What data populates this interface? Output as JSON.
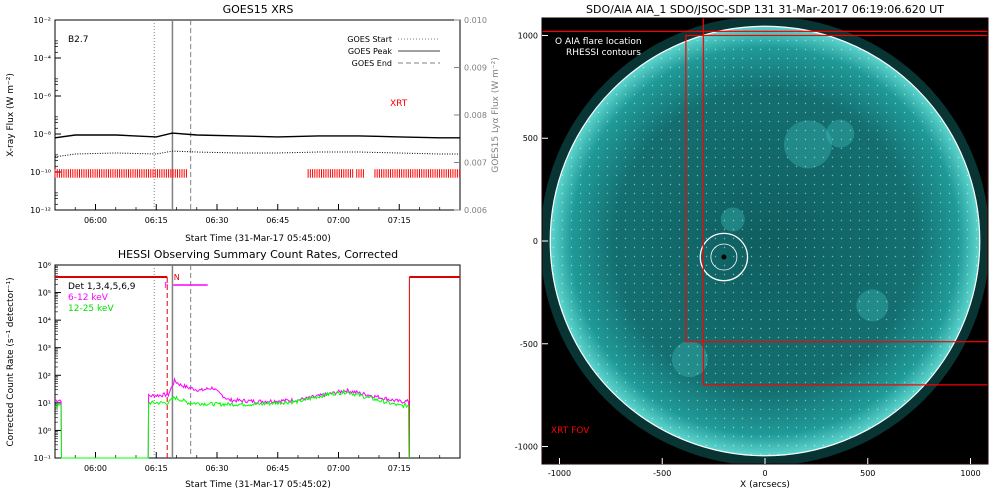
{
  "colors": {
    "flux_high": "#000000",
    "flux_low": "#000000",
    "goes_marker": "#808080",
    "xrt": "#ff0000",
    "band_6_12": "#ff00ff",
    "band_12_25": "#00ff00",
    "sun": "#1a8f8f",
    "limb": "#ffffff",
    "fov": "#ff0000"
  },
  "chart_data": [
    {
      "type": "line",
      "title": "GOES15 XRS",
      "xlabel": "Start Time (31-Mar-17 05:45:00)",
      "ylabel": "X-ray Flux (W m⁻²)",
      "ylabel_right": "GOES15 Lyα Flux (W m⁻²)",
      "x_unit": "minutes after 05:45:00",
      "xlim": [
        5.0,
        105.0
      ],
      "x_ticks": [
        15,
        30,
        45,
        60,
        75,
        90
      ],
      "x_tick_labels": [
        "06:00",
        "06:15",
        "06:30",
        "06:45",
        "07:00",
        "07:15"
      ],
      "ylim_exp": [
        -12,
        -2
      ],
      "y_ticks_exp": [
        -12,
        -10,
        -8,
        -6,
        -4,
        -2
      ],
      "y_tick_labels": [
        "10⁻¹²",
        "10⁻¹⁰",
        "10⁻⁸",
        "10⁻⁶",
        "10⁻⁴",
        "10⁻²"
      ],
      "y2lim": [
        0.006,
        0.01
      ],
      "y2_tick_labels": [
        "0.006",
        "0.007",
        "0.008",
        "0.009",
        "0.010"
      ],
      "class_label": "B2.7",
      "xrt_label": "XRT",
      "legend": [
        "GOES Start",
        "GOES Peak",
        "GOES End"
      ],
      "markers": {
        "start": 29.5,
        "peak": 34.0,
        "end": 38.5
      },
      "series": [
        {
          "name": "",
          "points": [
            [
              5,
              -8.2
            ],
            [
              10,
              -8.05
            ],
            [
              20,
              -8.05
            ],
            [
              30,
              -8.15
            ],
            [
              34,
              -7.95
            ],
            [
              40,
              -8.05
            ],
            [
              50,
              -8.1
            ],
            [
              60,
              -8.15
            ],
            [
              70,
              -8.1
            ],
            [
              80,
              -8.1
            ],
            [
              90,
              -8.15
            ],
            [
              100,
              -8.2
            ],
            [
              105,
              -8.2
            ]
          ]
        },
        {
          "name": "",
          "points": [
            [
              5,
              -9.2
            ],
            [
              10,
              -9.05
            ],
            [
              20,
              -9.0
            ],
            [
              30,
              -9.05
            ],
            [
              34,
              -8.9
            ],
            [
              40,
              -8.95
            ],
            [
              50,
              -9.0
            ],
            [
              60,
              -9.0
            ],
            [
              70,
              -8.95
            ],
            [
              80,
              -8.95
            ],
            [
              90,
              -9.0
            ],
            [
              100,
              -9.05
            ],
            [
              105,
              -9.05
            ]
          ]
        }
      ],
      "xrt_coverage": [
        [
          5,
          37.5
        ],
        [
          67.5,
          78.5
        ],
        [
          79.5,
          81.5
        ],
        [
          84,
          105
        ]
      ]
    },
    {
      "type": "line",
      "title": "HESSI Observing Summary Count Rates, Corrected",
      "xlabel": "Start Time (31-Mar-17 05:45:02)",
      "ylabel": "Corrected Count Rate (s⁻¹ detector⁻¹)",
      "x_unit": "minutes after 05:45:02",
      "xlim": [
        5.0,
        105.0
      ],
      "x_ticks": [
        15,
        30,
        45,
        60,
        75,
        90
      ],
      "x_tick_labels": [
        "06:00",
        "06:15",
        "06:30",
        "06:45",
        "07:00",
        "07:15"
      ],
      "ylim_exp": [
        -1,
        6
      ],
      "y_ticks_exp": [
        -1,
        0,
        1,
        2,
        3,
        4,
        5,
        6
      ],
      "y_tick_labels": [
        "10⁻¹",
        "10⁰",
        "10¹",
        "10²",
        "10³",
        "10⁴",
        "10⁵",
        "10⁶"
      ],
      "det_label": "Det 1,3,4,5,6,9",
      "flag_labels": [
        "F",
        "N"
      ],
      "markers": {
        "start": 29.5,
        "peak": 34.0,
        "end": 38.5
      },
      "series": [
        {
          "name": "6-12 keV",
          "points": [
            [
              5,
              1.1
            ],
            [
              6.5,
              1.1
            ],
            [
              6.6,
              -1
            ],
            [
              28,
              -1
            ],
            [
              28.1,
              1.25
            ],
            [
              33,
              1.3
            ],
            [
              34.5,
              1.8
            ],
            [
              36,
              1.65
            ],
            [
              38,
              1.55
            ],
            [
              41,
              1.45
            ],
            [
              44,
              1.55
            ],
            [
              45,
              1.4
            ],
            [
              48,
              1.1
            ],
            [
              55,
              1.05
            ],
            [
              65,
              1.1
            ],
            [
              72,
              1.3
            ],
            [
              77,
              1.45
            ],
            [
              82,
              1.3
            ],
            [
              90,
              1.05
            ],
            [
              92.3,
              1.05
            ],
            [
              92.4,
              -1
            ]
          ]
        },
        {
          "name": "12-25 keV",
          "points": [
            [
              5,
              0.9
            ],
            [
              6.5,
              0.9
            ],
            [
              6.6,
              -1
            ],
            [
              28,
              -1
            ],
            [
              28.1,
              1.0
            ],
            [
              33,
              1.0
            ],
            [
              34.5,
              1.2
            ],
            [
              38,
              1.0
            ],
            [
              45,
              0.95
            ],
            [
              55,
              0.95
            ],
            [
              65,
              1.05
            ],
            [
              72,
              1.3
            ],
            [
              77,
              1.4
            ],
            [
              82,
              1.2
            ],
            [
              90,
              0.9
            ],
            [
              92.3,
              0.9
            ],
            [
              92.4,
              -1
            ]
          ]
        }
      ],
      "night_segments": [
        [
          5,
          32.7
        ],
        [
          92.5,
          105
        ]
      ],
      "flag_F": [
        32.7,
        42.7
      ],
      "flag_N": [
        34.8,
        44.0
      ]
    }
  ],
  "image_panel": {
    "title": "SDO/AIA AIA_1 SDO/JSOC-SDP 131 31-Mar-2017 06:19:06.620 UT",
    "xlabel": "X (arcsecs)",
    "x_tick_labels": [
      "-1000",
      "-500",
      "0",
      "500",
      "1000"
    ],
    "y_tick_labels": [
      "-1000",
      "-500",
      "0",
      "500",
      "1000"
    ],
    "x_ticks": [
      -1000,
      -500,
      0,
      500,
      1000
    ],
    "y_ticks": [
      -1000,
      -500,
      0,
      500,
      1000
    ],
    "xlim": [
      -1085,
      1085
    ],
    "ylim": [
      -1085,
      1085
    ],
    "solar_radius": 1045,
    "flare_location": [
      -200,
      -78
    ],
    "flare_circle_radius": 115,
    "legend_line1": "O AIA flare location",
    "legend_line2": "RHESSI contours",
    "fov_label": "XRT FOV",
    "fov_boxes": [
      [
        -1085,
        1020,
        1085,
        -1085
      ],
      [
        -385,
        1000,
        1085,
        -490
      ],
      [
        -300,
        1085,
        1085,
        -700
      ]
    ]
  }
}
